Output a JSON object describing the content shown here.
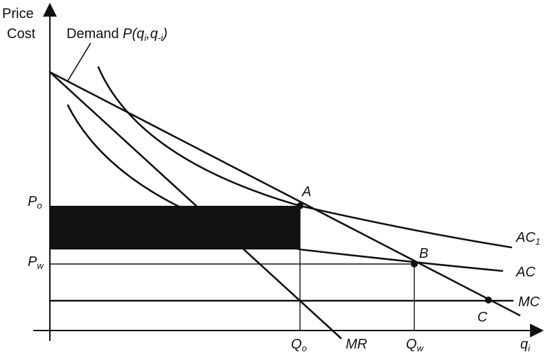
{
  "axes": {
    "y_label_line1": "Price",
    "y_label_line2": "Cost",
    "x_label": "q",
    "x_label_sub": "i"
  },
  "curves": {
    "demand_prefix": "Demand ",
    "demand_func": "P(q",
    "demand_sub1": "i",
    "demand_sep": ",q",
    "demand_sub2": "-i",
    "demand_close": ")",
    "mr": "MR",
    "ac1": "AC",
    "ac1_sub": "1",
    "ac": "AC",
    "mc": "MC"
  },
  "points": {
    "a": "A",
    "b": "B",
    "c": "C"
  },
  "price_levels": {
    "po": "P",
    "po_sub": "o",
    "pw": "P",
    "pw_sub": "w"
  },
  "quantities": {
    "qo": "Q",
    "qo_sub": "o",
    "qw": "Q",
    "qw_sub": "w"
  },
  "colors": {
    "ink": "#111111",
    "shaded_area": "#111111"
  }
}
